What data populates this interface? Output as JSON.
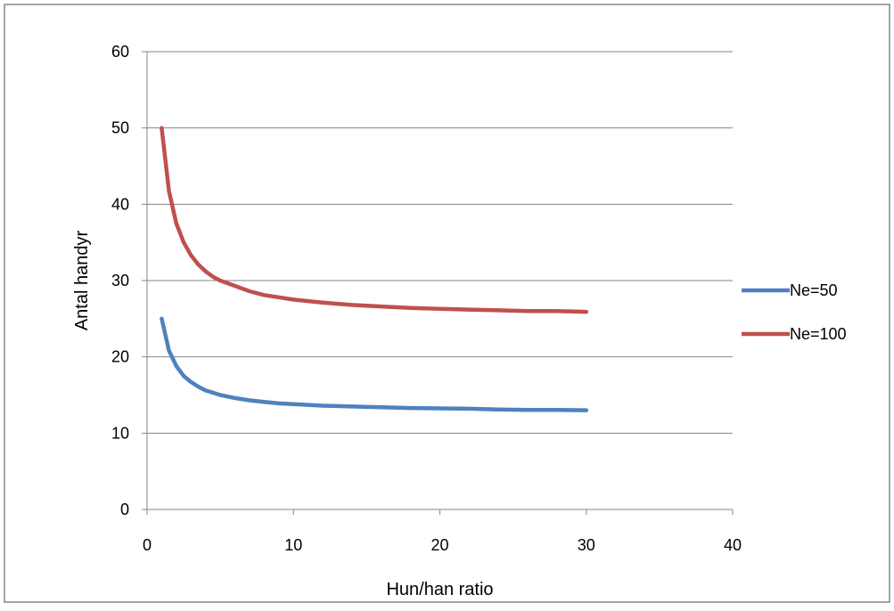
{
  "chart_data": {
    "type": "line",
    "title": "",
    "xlabel": "Hun/han ratio",
    "ylabel": "Antal handyr",
    "xlim": [
      0,
      40
    ],
    "ylim": [
      0,
      60
    ],
    "xticks": [
      "0",
      "10",
      "20",
      "30",
      "40"
    ],
    "yticks": [
      "0",
      "10",
      "20",
      "30",
      "40",
      "50",
      "60"
    ],
    "grid": "horizontal",
    "legend_position": "right",
    "series": [
      {
        "name": "Ne=50",
        "color": "#4F81BD",
        "x": [
          1,
          1.5,
          2,
          2.5,
          3,
          3.5,
          4,
          4.5,
          5,
          6,
          7,
          8,
          9,
          10,
          12,
          14,
          16,
          18,
          20,
          22,
          24,
          26,
          28,
          30
        ],
        "y": [
          25,
          20.8,
          18.8,
          17.5,
          16.7,
          16.1,
          15.6,
          15.3,
          15,
          14.6,
          14.3,
          14.1,
          13.9,
          13.8,
          13.6,
          13.5,
          13.4,
          13.3,
          13.25,
          13.2,
          13.1,
          13.05,
          13.05,
          13
        ]
      },
      {
        "name": "Ne=100",
        "color": "#C0504D",
        "x": [
          1,
          1.5,
          2,
          2.5,
          3,
          3.5,
          4,
          4.5,
          5,
          6,
          7,
          8,
          9,
          10,
          12,
          14,
          16,
          18,
          20,
          22,
          24,
          26,
          28,
          30
        ],
        "y": [
          50,
          41.7,
          37.5,
          35,
          33.3,
          32.1,
          31.2,
          30.5,
          30,
          29.3,
          28.6,
          28.1,
          27.8,
          27.5,
          27.1,
          26.8,
          26.6,
          26.4,
          26.3,
          26.2,
          26.1,
          26,
          26,
          25.9
        ]
      }
    ]
  }
}
